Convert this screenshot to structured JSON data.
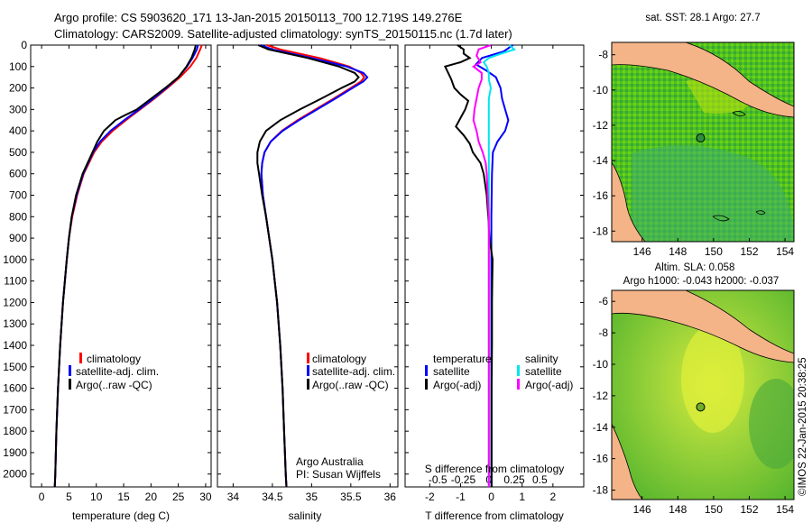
{
  "header": {
    "title_line1": "Argo profile: CS 5903620_171 13-Jan-2015 20150113_700 12.719S 149.276E",
    "title_line2": "Climatology: CARS2009. Satellite-adjusted climatology: synTS_20150115.nc (1.7d later)"
  },
  "colors": {
    "climatology": "#ff0000",
    "satellite": "#0000ff",
    "argo": "#000000",
    "sat_salinity": "#00e5ee",
    "argo_salinity": "#ff00ff",
    "land": "#f4b488"
  },
  "chart_data": [
    {
      "id": "temperature",
      "type": "line",
      "xlabel": "temperature (deg C)",
      "ylabel": "depth",
      "xlim": [
        -2,
        31
      ],
      "ylim": [
        2060,
        0
      ],
      "xticks": [
        0,
        5,
        10,
        15,
        20,
        25,
        30
      ],
      "yticks": [
        0,
        100,
        200,
        300,
        400,
        500,
        600,
        700,
        800,
        900,
        1000,
        1100,
        1200,
        1300,
        1400,
        1500,
        1600,
        1700,
        1800,
        1900,
        2000
      ],
      "legend": [
        "climatology",
        "satellite-adj. clim.",
        "Argo(..raw -QC)"
      ],
      "series": [
        {
          "name": "climatology",
          "depth": [
            0,
            20,
            60,
            100,
            150,
            200,
            250,
            300,
            350,
            400,
            450,
            500,
            600,
            700,
            800,
            900,
            1000,
            1200,
            1400,
            1600,
            1800,
            2000,
            2060
          ],
          "values": [
            29.3,
            29.0,
            28.3,
            27.2,
            25.3,
            23.0,
            20.6,
            18.0,
            15.4,
            13.0,
            11.0,
            9.6,
            7.7,
            6.5,
            5.6,
            5.0,
            4.6,
            3.9,
            3.4,
            3.0,
            2.7,
            2.5,
            2.4
          ]
        },
        {
          "name": "satellite-adj. clim.",
          "depth": [
            0,
            20,
            60,
            100,
            150,
            200,
            250,
            300,
            350,
            400,
            450,
            500,
            600,
            700,
            800,
            900,
            1000,
            1200,
            1400,
            1600,
            1800,
            2000,
            2060
          ],
          "values": [
            28.6,
            28.4,
            27.6,
            26.6,
            25.0,
            22.8,
            20.4,
            17.8,
            15.1,
            12.6,
            10.7,
            9.4,
            7.6,
            6.4,
            5.5,
            5.0,
            4.6,
            3.9,
            3.4,
            3.0,
            2.7,
            2.5,
            2.4
          ]
        },
        {
          "name": "Argo(..raw -QC)",
          "depth": [
            0,
            20,
            60,
            100,
            150,
            200,
            250,
            300,
            330,
            350,
            400,
            450,
            500,
            600,
            700,
            800,
            900,
            1000,
            1200,
            1400,
            1600,
            1800,
            2000,
            2060
          ],
          "values": [
            28.2,
            28.0,
            27.4,
            26.5,
            25.0,
            22.6,
            20.0,
            17.4,
            15.0,
            13.5,
            11.4,
            10.2,
            9.3,
            7.5,
            6.3,
            5.5,
            5.0,
            4.6,
            3.9,
            3.4,
            3.0,
            2.7,
            2.5,
            2.4
          ]
        }
      ]
    },
    {
      "id": "salinity",
      "type": "line",
      "xlabel": "salinity",
      "ylabel": "depth",
      "xlim": [
        33.8,
        36.1
      ],
      "ylim": [
        2060,
        0
      ],
      "xticks": [
        34,
        34.5,
        35,
        35.5,
        36
      ],
      "legend": [
        "climatology",
        "satellite-adj. clim.",
        "Argo(..raw -QC)"
      ],
      "annotation": [
        "Argo Australia",
        "PI: Susan Wijffels"
      ],
      "series": [
        {
          "name": "climatology",
          "depth": [
            0,
            20,
            60,
            100,
            130,
            150,
            170,
            200,
            250,
            300,
            350,
            400,
            450,
            500,
            550,
            600,
            700,
            800,
            900,
            1000,
            1200,
            1400,
            1600,
            1800,
            2000,
            2060
          ],
          "values": [
            34.43,
            34.6,
            35.1,
            35.48,
            35.63,
            35.67,
            35.63,
            35.5,
            35.28,
            35.05,
            34.82,
            34.62,
            34.48,
            34.4,
            34.37,
            34.36,
            34.38,
            34.42,
            34.46,
            34.5,
            34.56,
            34.6,
            34.63,
            34.65,
            34.67,
            34.68
          ]
        },
        {
          "name": "satellite-adj. clim.",
          "depth": [
            0,
            20,
            60,
            100,
            130,
            150,
            170,
            200,
            250,
            300,
            350,
            400,
            450,
            500,
            550,
            600,
            700,
            800,
            900,
            1000,
            1200,
            1400,
            1600,
            1800,
            2000,
            2060
          ],
          "values": [
            34.35,
            34.5,
            35.0,
            35.45,
            35.66,
            35.71,
            35.66,
            35.52,
            35.3,
            35.07,
            34.84,
            34.63,
            34.48,
            34.4,
            34.37,
            34.36,
            34.38,
            34.42,
            34.46,
            34.5,
            34.56,
            34.6,
            34.63,
            34.65,
            34.67,
            34.68
          ]
        },
        {
          "name": "Argo(..raw -QC)",
          "depth": [
            0,
            20,
            60,
            100,
            130,
            150,
            170,
            200,
            250,
            300,
            350,
            400,
            450,
            500,
            550,
            600,
            700,
            800,
            900,
            1000,
            1200,
            1400,
            1600,
            1800,
            2000,
            2060
          ],
          "values": [
            34.32,
            34.45,
            34.95,
            35.35,
            35.55,
            35.6,
            35.55,
            35.38,
            35.12,
            34.85,
            34.6,
            34.42,
            34.34,
            34.31,
            34.31,
            34.33,
            34.37,
            34.42,
            34.46,
            34.5,
            34.56,
            34.6,
            34.63,
            34.65,
            34.67,
            34.68
          ]
        }
      ]
    },
    {
      "id": "difference",
      "type": "line",
      "title": "S difference from climatology",
      "xlabel": "T difference from climatology",
      "xlim": [
        -2.8,
        3.0
      ],
      "ylim": [
        2060,
        0
      ],
      "xticks": [
        -2,
        -1,
        0,
        1,
        2
      ],
      "sticks": [
        -0.5,
        -0.25,
        0,
        0.25,
        0.5
      ],
      "legend_temperature_header": "temperature",
      "legend_salinity_header": "salinity",
      "legend": [
        "satellite",
        "Argo(-adj)",
        "satellite",
        "Argo(-adj)"
      ],
      "series": [
        {
          "name": "T satellite",
          "depth": [
            0,
            30,
            60,
            90,
            120,
            150,
            200,
            250,
            300,
            350,
            400,
            450,
            500,
            600,
            800,
            1000,
            1500,
            2000,
            2060
          ],
          "values": [
            0.7,
            0.4,
            -0.3,
            -0.5,
            -0.15,
            0.15,
            0.3,
            0.35,
            0.45,
            0.55,
            0.45,
            0.2,
            0.05,
            0.02,
            0.0,
            0.0,
            0.0,
            0.0,
            0.0
          ]
        },
        {
          "name": "T Argo(-adj)",
          "depth": [
            0,
            20,
            40,
            60,
            80,
            100,
            130,
            160,
            200,
            230,
            260,
            300,
            340,
            380,
            420,
            460,
            500,
            550,
            600,
            700,
            800,
            900,
            1000,
            1100,
            1200,
            1400,
            1600,
            1800,
            2000,
            2060
          ],
          "values": [
            -1.1,
            -0.9,
            -0.9,
            -0.7,
            -1.0,
            -1.5,
            -1.4,
            -1.3,
            -1.2,
            -1.0,
            -0.75,
            -0.85,
            -1.0,
            -1.15,
            -0.9,
            -0.7,
            -0.6,
            -0.35,
            -0.25,
            -0.15,
            -0.1,
            -0.06,
            0.04,
            0.03,
            0.02,
            0.02,
            0.01,
            0.01,
            0.01,
            0.01
          ]
        },
        {
          "name": "S satellite",
          "depth": [
            0,
            20,
            40,
            60,
            80,
            100,
            130,
            160,
            200,
            250,
            300,
            400,
            500,
            700,
            1000,
            1500,
            2000,
            2060
          ],
          "values": [
            0.2,
            0.25,
            0.12,
            0.0,
            -0.05,
            -0.02,
            0.0,
            0.0,
            0.02,
            0.0,
            0.0,
            0.0,
            0.0,
            0.0,
            0.0,
            0.0,
            0.0,
            0.0
          ]
        },
        {
          "name": "S Argo(-adj)",
          "depth": [
            0,
            20,
            50,
            80,
            100,
            130,
            160,
            200,
            250,
            300,
            350,
            400,
            450,
            500,
            550,
            600,
            700,
            800,
            900,
            1000,
            1500,
            2000,
            2060
          ],
          "values": [
            0.02,
            -0.1,
            -0.12,
            -0.08,
            -0.15,
            -0.07,
            -0.07,
            -0.1,
            -0.12,
            -0.14,
            -0.15,
            -0.12,
            -0.1,
            -0.06,
            -0.03,
            -0.02,
            -0.01,
            0.0,
            0.0,
            0.0,
            0.0,
            0.0,
            0.0
          ]
        }
      ]
    }
  ],
  "maps": {
    "sst": {
      "title": "sat. SST: 28.1  Argo: 27.7",
      "xticks": [
        "146",
        "148",
        "150",
        "152",
        "154"
      ],
      "yticks": [
        "-8",
        "-10",
        "-12",
        "-14",
        "-16",
        "-18"
      ],
      "lon_range": [
        144.3,
        154.5
      ],
      "lat_range": [
        -18.6,
        -7.3
      ],
      "argo_lon": 149.276,
      "argo_lat": -12.719
    },
    "sla": {
      "title_line1": "Altim. SLA: 0.058",
      "title_line2": "Argo h1000: -0.043 h2000: -0.037",
      "xticks": [
        "146",
        "148",
        "150",
        "152",
        "154"
      ],
      "yticks": [
        "-6",
        "-8",
        "-10",
        "-12",
        "-14",
        "-16",
        "-18"
      ],
      "lon_range": [
        144.3,
        154.5
      ],
      "lat_range": [
        -18.6,
        -5.3
      ],
      "argo_lon": 149.276,
      "argo_lat": -12.719
    }
  },
  "watermark": "©IMOS 22-Jan-2015 20:38:25"
}
